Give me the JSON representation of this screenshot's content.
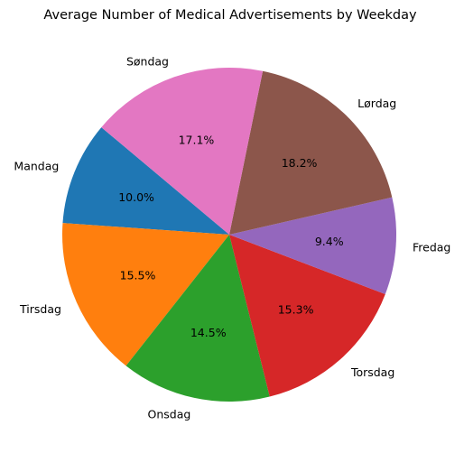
{
  "chart_data": {
    "type": "pie",
    "title": "Average Number of Medical Advertisements by Weekday",
    "categories": [
      "Mandag",
      "Tirsdag",
      "Onsdag",
      "Torsdag",
      "Fredag",
      "Lørdag",
      "Søndag"
    ],
    "values": [
      10.0,
      15.5,
      14.5,
      15.3,
      9.4,
      18.2,
      17.1
    ],
    "percent_labels": [
      "10.0%",
      "15.5%",
      "14.5%",
      "15.3%",
      "9.4%",
      "18.2%",
      "17.1%"
    ],
    "colors": [
      "#1f77b4",
      "#ff7f0e",
      "#2ca02c",
      "#d62728",
      "#9467bd",
      "#8c564b",
      "#e377c2"
    ],
    "start_angle_deg": 140,
    "direction": "counterclockwise",
    "legend": "none"
  }
}
